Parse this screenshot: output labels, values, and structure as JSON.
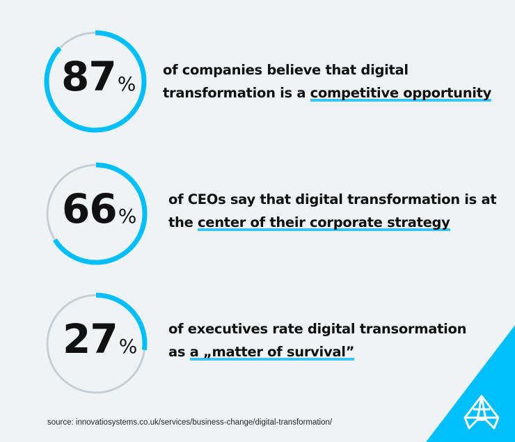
{
  "chart_data": {
    "type": "pie",
    "variant": "ring-gauge",
    "values": [
      87,
      66,
      27
    ],
    "unit": "%",
    "items": [
      {
        "value": "87",
        "unit": "%",
        "text_before": "of companies believe that digital transformation is a ",
        "highlight": "competitive opportunity",
        "text_after": ""
      },
      {
        "value": "66",
        "unit": "%",
        "text_before": "of CEOs say that digital transformation is at the ",
        "highlight": "center of their corporate strategy",
        "text_after": ""
      },
      {
        "value": "27",
        "unit": "%",
        "text_before": "of executives rate digital transormation as ",
        "highlight": "a „matter of survival”",
        "text_after": ""
      }
    ],
    "colors": {
      "fill": "#00bff8",
      "track": "#c5ced3",
      "highlight": "#3fc3f2"
    }
  },
  "lines": [
    [
      "of companies believe that digital",
      "transformation is a ",
      "competitive opportunity"
    ],
    [
      "of CEOs say that digital transformation is at",
      "the ",
      "center of their corporate strategy"
    ],
    [
      "of executives rate digital transormation",
      "as ",
      "a „matter of survival”"
    ]
  ],
  "source": "source: innovatiosystems.co.uk/services/business-change/digital-transformation/",
  "logo": {
    "icon": "diamond-logo-icon",
    "color": "#00bff8"
  },
  "background": "#f0f3f4"
}
